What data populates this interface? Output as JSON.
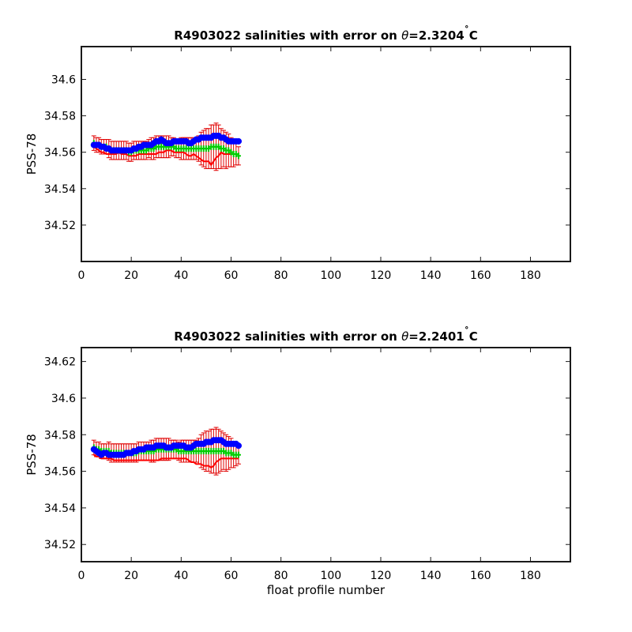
{
  "colors": {
    "axis": "#1a1a1a",
    "error_bar": "#e00000",
    "red_series": "#ff0000",
    "green_series": "#00cc00",
    "blue_series": "#0000ff"
  },
  "chart_data": [
    {
      "type": "scatter",
      "title_prefix": "R4903022 salinities with error on ",
      "title_theta": "θ",
      "title_value": "=2.3204",
      "title_degree": "˚",
      "title_unit": "C",
      "xlabel": "",
      "ylabel": "PSS-78",
      "xlim": [
        0,
        196
      ],
      "ylim": [
        34.5,
        34.618
      ],
      "xticks": [
        0,
        20,
        40,
        60,
        80,
        100,
        120,
        140,
        160,
        180
      ],
      "yticks": [
        34.52,
        34.54,
        34.56,
        34.58,
        34.6
      ],
      "ytick_labels": [
        "34.52",
        "34.54",
        "34.56",
        "34.58",
        "34.6"
      ],
      "grid": false,
      "x": [
        5,
        6,
        7,
        8,
        9,
        10,
        11,
        12,
        13,
        14,
        15,
        16,
        17,
        18,
        19,
        20,
        21,
        22,
        23,
        24,
        25,
        26,
        27,
        28,
        29,
        30,
        31,
        32,
        33,
        34,
        35,
        36,
        37,
        38,
        39,
        40,
        41,
        42,
        43,
        44,
        45,
        46,
        47,
        48,
        49,
        50,
        51,
        52,
        53,
        54,
        55,
        56,
        57,
        58,
        59,
        60,
        61,
        62,
        63
      ],
      "series": [
        {
          "marker": "dot",
          "color": "#0000ff",
          "values": [
            34.564,
            34.564,
            34.564,
            34.563,
            34.563,
            34.562,
            34.562,
            34.561,
            34.561,
            34.561,
            34.561,
            34.561,
            34.561,
            34.561,
            34.561,
            34.561,
            34.562,
            34.562,
            34.563,
            34.563,
            34.564,
            34.564,
            34.564,
            34.564,
            34.565,
            34.566,
            34.566,
            34.567,
            34.566,
            34.565,
            34.565,
            34.565,
            34.566,
            34.566,
            34.566,
            34.566,
            34.566,
            34.566,
            34.565,
            34.565,
            34.566,
            34.567,
            34.567,
            34.568,
            34.568,
            34.568,
            34.568,
            34.568,
            34.569,
            34.569,
            34.569,
            34.568,
            34.568,
            34.567,
            34.566,
            34.566,
            34.566,
            34.566,
            34.566
          ]
        },
        {
          "marker": "line",
          "color": "#ff0000",
          "values": [
            34.563,
            34.562,
            34.561,
            34.56,
            34.56,
            34.559,
            34.559,
            34.559,
            34.559,
            34.559,
            34.56,
            34.559,
            34.559,
            34.559,
            34.558,
            34.558,
            34.558,
            34.558,
            34.559,
            34.559,
            34.559,
            34.559,
            34.559,
            34.559,
            34.559,
            34.559,
            34.56,
            34.56,
            34.56,
            34.561,
            34.561,
            34.561,
            34.56,
            34.56,
            34.56,
            34.56,
            34.56,
            34.559,
            34.558,
            34.558,
            34.559,
            34.558,
            34.557,
            34.556,
            34.555,
            34.555,
            34.555,
            34.553,
            34.555,
            34.557,
            34.558,
            34.56,
            34.559,
            34.559,
            34.559,
            34.559,
            34.559,
            34.559,
            34.559
          ]
        },
        {
          "marker": "cross",
          "color": "#00cc00",
          "values": [
            34.565,
            34.564,
            34.564,
            34.563,
            34.563,
            34.563,
            34.562,
            34.561,
            34.561,
            34.561,
            34.561,
            34.561,
            34.561,
            34.561,
            34.56,
            34.56,
            34.561,
            34.561,
            34.561,
            34.561,
            34.561,
            34.561,
            34.562,
            34.562,
            34.562,
            34.563,
            34.563,
            34.563,
            34.563,
            34.563,
            34.563,
            34.563,
            34.563,
            34.562,
            34.562,
            34.562,
            34.562,
            34.562,
            34.562,
            34.562,
            34.562,
            34.562,
            34.562,
            34.562,
            34.562,
            34.562,
            34.562,
            34.563,
            34.563,
            34.563,
            34.563,
            34.562,
            34.562,
            34.561,
            34.561,
            34.56,
            34.559,
            34.559,
            34.558
          ],
          "error": [
            0.004,
            0.004,
            0.004,
            0.004,
            0.004,
            0.004,
            0.005,
            0.005,
            0.005,
            0.005,
            0.005,
            0.005,
            0.005,
            0.005,
            0.005,
            0.005,
            0.005,
            0.005,
            0.005,
            0.005,
            0.005,
            0.005,
            0.005,
            0.006,
            0.006,
            0.006,
            0.006,
            0.006,
            0.006,
            0.006,
            0.006,
            0.005,
            0.005,
            0.005,
            0.005,
            0.006,
            0.006,
            0.006,
            0.006,
            0.006,
            0.006,
            0.006,
            0.007,
            0.009,
            0.01,
            0.011,
            0.011,
            0.012,
            0.012,
            0.013,
            0.012,
            0.011,
            0.01,
            0.01,
            0.009,
            0.008,
            0.007,
            0.006,
            0.005
          ]
        }
      ]
    },
    {
      "type": "scatter",
      "title_prefix": "R4903022 salinities with error on ",
      "title_theta": "θ",
      "title_value": "=2.2401",
      "title_degree": "˚",
      "title_unit": "C",
      "xlabel": "float profile number",
      "ylabel": "PSS-78",
      "xlim": [
        0,
        196
      ],
      "ylim": [
        34.5106,
        34.6276
      ],
      "xticks": [
        0,
        20,
        40,
        60,
        80,
        100,
        120,
        140,
        160,
        180
      ],
      "yticks": [
        34.52,
        34.54,
        34.56,
        34.58,
        34.6,
        34.62
      ],
      "ytick_labels": [
        "34.52",
        "34.54",
        "34.56",
        "34.58",
        "34.6",
        "34.62"
      ],
      "grid": false,
      "x": [
        5,
        6,
        7,
        8,
        9,
        10,
        11,
        12,
        13,
        14,
        15,
        16,
        17,
        18,
        19,
        20,
        21,
        22,
        23,
        24,
        25,
        26,
        27,
        28,
        29,
        30,
        31,
        32,
        33,
        34,
        35,
        36,
        37,
        38,
        39,
        40,
        41,
        42,
        43,
        44,
        45,
        46,
        47,
        48,
        49,
        50,
        51,
        52,
        53,
        54,
        55,
        56,
        57,
        58,
        59,
        60,
        61,
        62,
        63
      ],
      "series": [
        {
          "marker": "dot",
          "color": "#0000ff",
          "values": [
            34.572,
            34.571,
            34.57,
            34.569,
            34.57,
            34.57,
            34.569,
            34.569,
            34.569,
            34.569,
            34.569,
            34.569,
            34.569,
            34.57,
            34.57,
            34.57,
            34.571,
            34.571,
            34.572,
            34.572,
            34.572,
            34.573,
            34.573,
            34.573,
            34.573,
            34.574,
            34.574,
            34.574,
            34.574,
            34.573,
            34.573,
            34.573,
            34.574,
            34.574,
            34.574,
            34.574,
            34.574,
            34.573,
            34.573,
            34.573,
            34.574,
            34.575,
            34.575,
            34.575,
            34.575,
            34.576,
            34.576,
            34.576,
            34.577,
            34.577,
            34.577,
            34.577,
            34.576,
            34.575,
            34.575,
            34.575,
            34.575,
            34.575,
            34.574
          ]
        },
        {
          "marker": "line",
          "color": "#ff0000",
          "values": [
            34.569,
            34.568,
            34.568,
            34.567,
            34.567,
            34.567,
            34.567,
            34.567,
            34.566,
            34.566,
            34.566,
            34.566,
            34.566,
            34.566,
            34.566,
            34.566,
            34.566,
            34.566,
            34.566,
            34.566,
            34.566,
            34.566,
            34.566,
            34.566,
            34.566,
            34.566,
            34.566,
            34.567,
            34.567,
            34.567,
            34.567,
            34.567,
            34.567,
            34.567,
            34.567,
            34.567,
            34.567,
            34.567,
            34.566,
            34.565,
            34.565,
            34.564,
            34.564,
            34.564,
            34.563,
            34.563,
            34.563,
            34.562,
            34.563,
            34.565,
            34.566,
            34.567,
            34.567,
            34.567,
            34.567,
            34.567,
            34.567,
            34.567,
            34.567
          ]
        },
        {
          "marker": "cross",
          "color": "#00cc00",
          "values": [
            34.573,
            34.572,
            34.572,
            34.571,
            34.571,
            34.571,
            34.571,
            34.57,
            34.57,
            34.57,
            34.57,
            34.57,
            34.57,
            34.57,
            34.57,
            34.57,
            34.57,
            34.57,
            34.571,
            34.571,
            34.571,
            34.571,
            34.571,
            34.571,
            34.571,
            34.572,
            34.572,
            34.572,
            34.572,
            34.572,
            34.572,
            34.572,
            34.572,
            34.572,
            34.571,
            34.571,
            34.571,
            34.571,
            34.571,
            34.571,
            34.571,
            34.571,
            34.571,
            34.571,
            34.571,
            34.571,
            34.571,
            34.571,
            34.571,
            34.571,
            34.571,
            34.571,
            34.571,
            34.57,
            34.57,
            34.57,
            34.569,
            34.569,
            34.569
          ],
          "error": [
            0.004,
            0.004,
            0.004,
            0.004,
            0.004,
            0.004,
            0.005,
            0.005,
            0.005,
            0.005,
            0.005,
            0.005,
            0.005,
            0.005,
            0.005,
            0.005,
            0.005,
            0.005,
            0.005,
            0.005,
            0.005,
            0.005,
            0.005,
            0.006,
            0.006,
            0.006,
            0.006,
            0.006,
            0.006,
            0.006,
            0.006,
            0.005,
            0.005,
            0.005,
            0.005,
            0.006,
            0.006,
            0.006,
            0.006,
            0.006,
            0.006,
            0.006,
            0.007,
            0.009,
            0.01,
            0.011,
            0.011,
            0.012,
            0.012,
            0.013,
            0.012,
            0.011,
            0.01,
            0.01,
            0.009,
            0.008,
            0.007,
            0.006,
            0.005
          ]
        }
      ]
    }
  ]
}
